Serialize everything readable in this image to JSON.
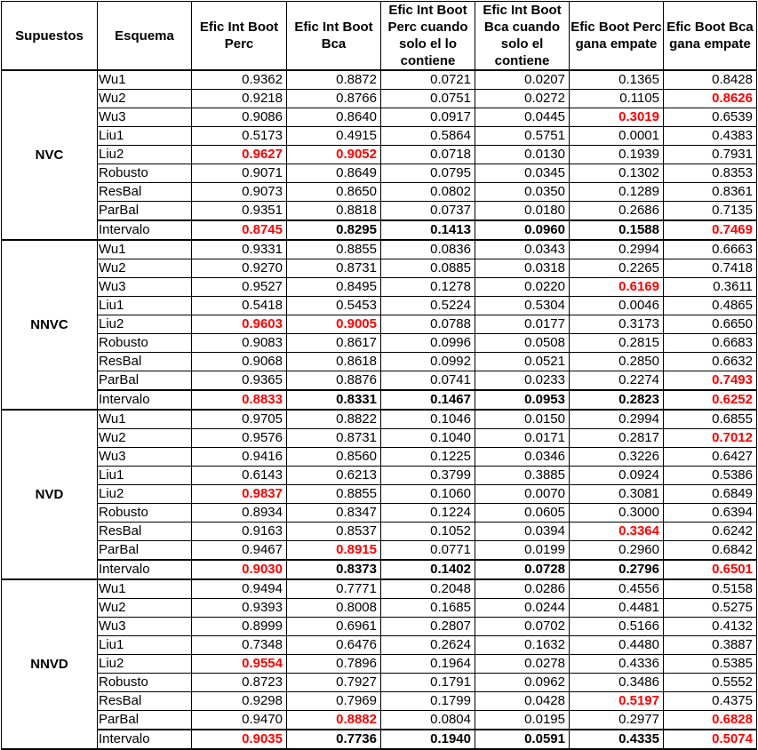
{
  "headers": [
    "Supuestos",
    "Esquema",
    "Efic Int Boot Perc",
    "Efic Int Boot Bca",
    "Efic Int Boot Perc cuando solo el lo contiene",
    "Efic Int Boot Bca cuando solo el contiene",
    "Efic Boot Perc gana empate",
    "Efic Boot Bca gana empate"
  ],
  "groups": [
    {
      "name": "NVC",
      "rows": [
        {
          "scheme": "Wu1",
          "values": [
            "0.9362",
            "0.8872",
            "0.0721",
            "0.0207",
            "0.1365",
            "0.8428"
          ],
          "red": []
        },
        {
          "scheme": "Wu2",
          "values": [
            "0.9218",
            "0.8766",
            "0.0751",
            "0.0272",
            "0.1105",
            "0.8626"
          ],
          "red": [
            5
          ]
        },
        {
          "scheme": "Wu3",
          "values": [
            "0.9086",
            "0.8640",
            "0.0917",
            "0.0445",
            "0.3019",
            "0.6539"
          ],
          "red": [
            4
          ]
        },
        {
          "scheme": "Liu1",
          "values": [
            "0.5173",
            "0.4915",
            "0.5864",
            "0.5751",
            "0.0001",
            "0.4383"
          ],
          "red": []
        },
        {
          "scheme": "Liu2",
          "values": [
            "0.9627",
            "0.9052",
            "0.0718",
            "0.0130",
            "0.1939",
            "0.7931"
          ],
          "red": [
            0,
            1
          ]
        },
        {
          "scheme": "Robusto",
          "values": [
            "0.9071",
            "0.8649",
            "0.0795",
            "0.0345",
            "0.1302",
            "0.8353"
          ],
          "red": []
        },
        {
          "scheme": "ResBal",
          "values": [
            "0.9073",
            "0.8650",
            "0.0802",
            "0.0350",
            "0.1289",
            "0.8361"
          ],
          "red": []
        },
        {
          "scheme": "ParBal",
          "values": [
            "0.9351",
            "0.8818",
            "0.0737",
            "0.0180",
            "0.2686",
            "0.7135"
          ],
          "red": []
        },
        {
          "scheme": "Intervalo",
          "values": [
            "0.8745",
            "0.8295",
            "0.1413",
            "0.0960",
            "0.1588",
            "0.7469"
          ],
          "red": [
            0,
            5
          ],
          "interval": true
        }
      ]
    },
    {
      "name": "NNVC",
      "rows": [
        {
          "scheme": "Wu1",
          "values": [
            "0.9331",
            "0.8855",
            "0.0836",
            "0.0343",
            "0.2994",
            "0.6663"
          ],
          "red": []
        },
        {
          "scheme": "Wu2",
          "values": [
            "0.9270",
            "0.8731",
            "0.0885",
            "0.0318",
            "0.2265",
            "0.7418"
          ],
          "red": []
        },
        {
          "scheme": "Wu3",
          "values": [
            "0.9527",
            "0.8495",
            "0.1278",
            "0.0220",
            "0.6169",
            "0.3611"
          ],
          "red": [
            4
          ]
        },
        {
          "scheme": "Liu1",
          "values": [
            "0.5418",
            "0.5453",
            "0.5224",
            "0.5304",
            "0.0046",
            "0.4865"
          ],
          "red": []
        },
        {
          "scheme": "Liu2",
          "values": [
            "0.9603",
            "0.9005",
            "0.0788",
            "0.0177",
            "0.3173",
            "0.6650"
          ],
          "red": [
            0,
            1
          ]
        },
        {
          "scheme": "Robusto",
          "values": [
            "0.9083",
            "0.8617",
            "0.0996",
            "0.0508",
            "0.2815",
            "0.6683"
          ],
          "red": []
        },
        {
          "scheme": "ResBal",
          "values": [
            "0.9068",
            "0.8618",
            "0.0992",
            "0.0521",
            "0.2850",
            "0.6632"
          ],
          "red": []
        },
        {
          "scheme": "ParBal",
          "values": [
            "0.9365",
            "0.8876",
            "0.0741",
            "0.0233",
            "0.2274",
            "0.7493"
          ],
          "red": [
            5
          ]
        },
        {
          "scheme": "Intervalo",
          "values": [
            "0.8833",
            "0.8331",
            "0.1467",
            "0.0953",
            "0.2823",
            "0.6252"
          ],
          "red": [
            0,
            5
          ],
          "interval": true
        }
      ]
    },
    {
      "name": "NVD",
      "rows": [
        {
          "scheme": "Wu1",
          "values": [
            "0.9705",
            "0.8822",
            "0.1046",
            "0.0150",
            "0.2994",
            "0.6855"
          ],
          "red": []
        },
        {
          "scheme": "Wu2",
          "values": [
            "0.9576",
            "0.8731",
            "0.1040",
            "0.0171",
            "0.2817",
            "0.7012"
          ],
          "red": [
            5
          ]
        },
        {
          "scheme": "Wu3",
          "values": [
            "0.9416",
            "0.8560",
            "0.1225",
            "0.0346",
            "0.3226",
            "0.6427"
          ],
          "red": []
        },
        {
          "scheme": "Liu1",
          "values": [
            "0.6143",
            "0.6213",
            "0.3799",
            "0.3885",
            "0.0924",
            "0.5386"
          ],
          "red": []
        },
        {
          "scheme": "Liu2",
          "values": [
            "0.9837",
            "0.8855",
            "0.1060",
            "0.0070",
            "0.3081",
            "0.6849"
          ],
          "red": [
            0
          ]
        },
        {
          "scheme": "Robusto",
          "values": [
            "0.8934",
            "0.8347",
            "0.1224",
            "0.0605",
            "0.3000",
            "0.6394"
          ],
          "red": []
        },
        {
          "scheme": "ResBal",
          "values": [
            "0.9163",
            "0.8537",
            "0.1052",
            "0.0394",
            "0.3364",
            "0.6242"
          ],
          "red": [
            4
          ]
        },
        {
          "scheme": "ParBal",
          "values": [
            "0.9467",
            "0.8915",
            "0.0771",
            "0.0199",
            "0.2960",
            "0.6842"
          ],
          "red": [
            1
          ]
        },
        {
          "scheme": "Intervalo",
          "values": [
            "0.9030",
            "0.8373",
            "0.1402",
            "0.0728",
            "0.2796",
            "0.6501"
          ],
          "red": [
            0,
            5
          ],
          "interval": true
        }
      ]
    },
    {
      "name": "NNVD",
      "rows": [
        {
          "scheme": "Wu1",
          "values": [
            "0.9494",
            "0.7771",
            "0.2048",
            "0.0286",
            "0.4556",
            "0.5158"
          ],
          "red": []
        },
        {
          "scheme": "Wu2",
          "values": [
            "0.9393",
            "0.8008",
            "0.1685",
            "0.0244",
            "0.4481",
            "0.5275"
          ],
          "red": []
        },
        {
          "scheme": "Wu3",
          "values": [
            "0.8999",
            "0.6961",
            "0.2807",
            "0.0702",
            "0.5166",
            "0.4132"
          ],
          "red": []
        },
        {
          "scheme": "Liu1",
          "values": [
            "0.7348",
            "0.6476",
            "0.2624",
            "0.1632",
            "0.4480",
            "0.3887"
          ],
          "red": []
        },
        {
          "scheme": "Liu2",
          "values": [
            "0.9554",
            "0.7896",
            "0.1964",
            "0.0278",
            "0.4336",
            "0.5385"
          ],
          "red": [
            0
          ]
        },
        {
          "scheme": "Robusto",
          "values": [
            "0.8723",
            "0.7927",
            "0.1791",
            "0.0962",
            "0.3486",
            "0.5552"
          ],
          "red": []
        },
        {
          "scheme": "ResBal",
          "values": [
            "0.9298",
            "0.7969",
            "0.1799",
            "0.0428",
            "0.5197",
            "0.4375"
          ],
          "red": [
            4
          ]
        },
        {
          "scheme": "ParBal",
          "values": [
            "0.9470",
            "0.8882",
            "0.0804",
            "0.0195",
            "0.2977",
            "0.6828"
          ],
          "red": [
            1,
            5
          ]
        },
        {
          "scheme": "Intervalo",
          "values": [
            "0.9035",
            "0.7736",
            "0.1940",
            "0.0591",
            "0.4335",
            "0.5074"
          ],
          "red": [
            0,
            5
          ],
          "interval": true
        }
      ]
    }
  ]
}
